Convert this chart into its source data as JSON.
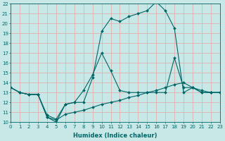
{
  "xlabel": "Humidex (Indice chaleur)",
  "xlim": [
    0,
    23
  ],
  "ylim": [
    10,
    22
  ],
  "xticks": [
    0,
    1,
    2,
    3,
    4,
    5,
    6,
    7,
    8,
    9,
    10,
    11,
    12,
    13,
    14,
    15,
    16,
    17,
    18,
    19,
    20,
    21,
    22,
    23
  ],
  "yticks": [
    10,
    11,
    12,
    13,
    14,
    15,
    16,
    17,
    18,
    19,
    20,
    21,
    22
  ],
  "bg_color": "#c8e8e8",
  "grid_color": "#e0b0b0",
  "line_color": "#006666",
  "curve1_x": [
    0,
    1,
    2,
    3,
    4,
    5,
    6,
    7,
    8,
    9,
    10,
    11,
    12,
    13,
    14,
    15,
    16,
    17,
    18,
    19,
    20,
    21,
    22,
    23
  ],
  "curve1_y": [
    13.5,
    13.0,
    12.8,
    12.8,
    10.5,
    10.0,
    11.8,
    12.0,
    12.0,
    14.5,
    19.2,
    20.5,
    20.2,
    20.7,
    21.0,
    21.3,
    22.2,
    21.3,
    19.5,
    13.0,
    13.5,
    13.0,
    13.0,
    13.0
  ],
  "curve2_x": [
    0,
    1,
    2,
    3,
    4,
    5,
    6,
    7,
    8,
    9,
    10,
    11,
    12,
    13,
    14,
    15,
    16,
    17,
    18,
    19,
    20,
    21,
    22,
    23
  ],
  "curve2_y": [
    13.5,
    13.0,
    12.8,
    12.8,
    10.7,
    10.3,
    11.8,
    12.0,
    13.2,
    14.8,
    17.0,
    15.2,
    13.2,
    13.0,
    13.0,
    13.0,
    13.0,
    13.0,
    16.5,
    13.5,
    13.5,
    13.0,
    13.0,
    13.0
  ],
  "curve3_x": [
    0,
    1,
    2,
    3,
    4,
    5,
    6,
    7,
    8,
    9,
    10,
    11,
    12,
    13,
    14,
    15,
    16,
    17,
    18,
    19,
    20,
    21,
    22,
    23
  ],
  "curve3_y": [
    13.5,
    13.0,
    12.8,
    12.8,
    10.5,
    10.2,
    10.8,
    11.0,
    11.2,
    11.5,
    11.8,
    12.0,
    12.2,
    12.5,
    12.7,
    13.0,
    13.2,
    13.5,
    13.8,
    14.0,
    13.5,
    13.2,
    13.0,
    13.0
  ]
}
